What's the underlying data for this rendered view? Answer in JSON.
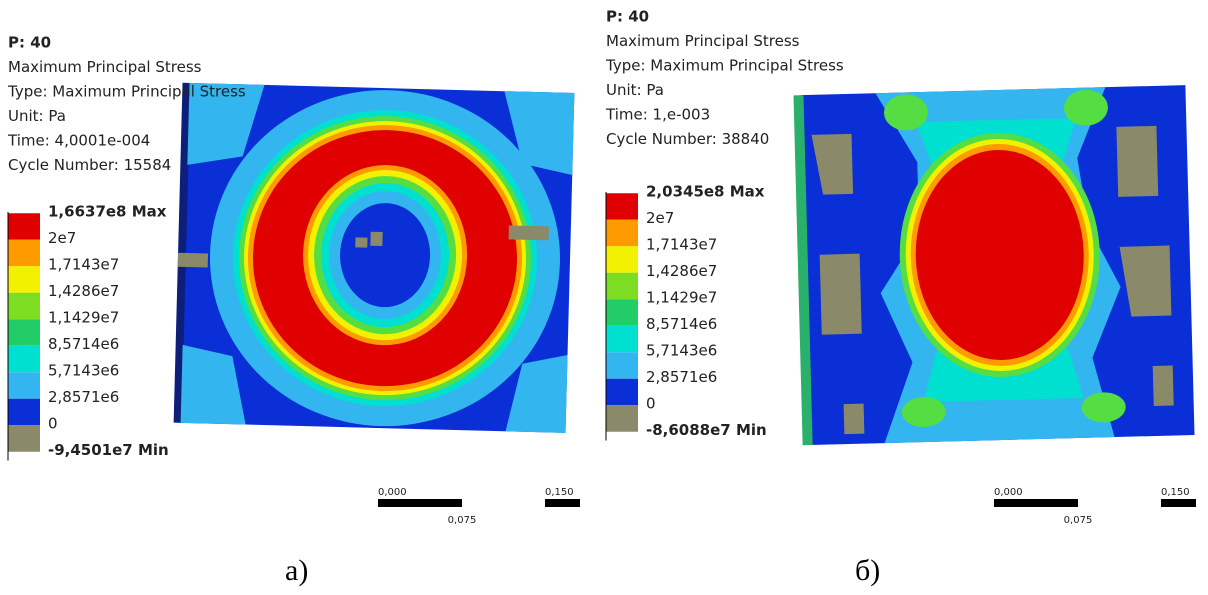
{
  "panels": [
    {
      "header": [
        "P: 40",
        "Maximum Principal Stress",
        "Type: Maximum Principal Stress",
        "Unit: Pa",
        "Time: 4,0001e-004",
        "Cycle Number: 15584"
      ],
      "legend": [
        "1,6637e8 Max",
        "2e7",
        "1,7143e7",
        "1,4286e7",
        "1,1429e7",
        "8,5714e6",
        "5,7143e6",
        "2,8571e6",
        "0",
        "-9,4501e7 Min"
      ],
      "scale": [
        "0,000",
        "0,075",
        "0,150"
      ],
      "caption": "а)"
    },
    {
      "header": [
        "P: 40",
        "Maximum Principal Stress",
        "Type: Maximum Principal Stress",
        "Unit: Pa",
        "Time: 1,e-003",
        "Cycle Number: 38840"
      ],
      "legend": [
        "2,0345e8 Max",
        "2e7",
        "1,7143e7",
        "1,4286e7",
        "1,1429e7",
        "8,5714e6",
        "5,7143e6",
        "2,8571e6",
        "0",
        "-8,6088e7 Min"
      ],
      "scale": [
        "0,000",
        "0,075",
        "0,150"
      ],
      "caption": "б)"
    }
  ]
}
